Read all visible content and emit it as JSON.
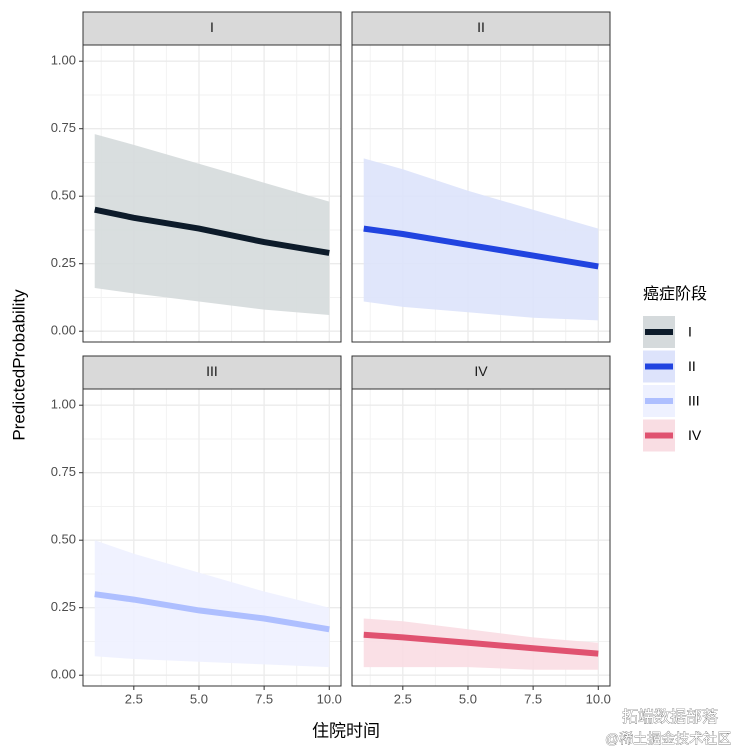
{
  "chart_data": {
    "type": "ribbon-line",
    "x_label": "住院时间",
    "y_label": "PredictedProbability",
    "legend_title": "癌症阶段",
    "x": [
      1,
      2.5,
      5,
      7.5,
      10
    ],
    "xlim": [
      0.55,
      10.45
    ],
    "xticks": [
      2.5,
      {
        "value": 5,
        "label": "5.0"
      },
      7.5,
      {
        "value": 10,
        "label": "10.0"
      }
    ],
    "x_minor_ticks": [
      1.25,
      3.75,
      6.25,
      8.75
    ],
    "ylim": [
      -0.04,
      1.06
    ],
    "yticks": [
      {
        "value": 0,
        "label": "0.00"
      },
      {
        "value": 0.25,
        "label": "0.25"
      },
      {
        "value": 0.5,
        "label": "0.50"
      },
      {
        "value": 0.75,
        "label": "0.75"
      },
      {
        "value": 1,
        "label": "1.00"
      }
    ],
    "y_minor_ticks": [
      0.125,
      0.375,
      0.625,
      0.875
    ],
    "grid": true,
    "series": [
      {
        "name": "I",
        "color": "#0d1b2a",
        "ribbon_color": "#d5dadc",
        "values": [
          0.45,
          0.42,
          0.38,
          0.33,
          0.29
        ],
        "lower": [
          0.16,
          0.14,
          0.11,
          0.08,
          0.06
        ],
        "upper": [
          0.73,
          0.69,
          0.62,
          0.55,
          0.48
        ]
      },
      {
        "name": "II",
        "color": "#2144e0",
        "ribbon_color": "#dde3fb",
        "values": [
          0.38,
          0.36,
          0.32,
          0.28,
          0.24
        ],
        "lower": [
          0.11,
          0.09,
          0.07,
          0.05,
          0.04
        ],
        "upper": [
          0.64,
          0.6,
          0.52,
          0.45,
          0.38
        ]
      },
      {
        "name": "III",
        "color": "#aebfff",
        "ribbon_color": "#eef1ff",
        "values": [
          0.3,
          0.28,
          0.24,
          0.21,
          0.17
        ],
        "lower": [
          0.07,
          0.06,
          0.05,
          0.04,
          0.03
        ],
        "upper": [
          0.5,
          0.45,
          0.38,
          0.31,
          0.25
        ]
      },
      {
        "name": "IV",
        "color": "#e05270",
        "ribbon_color": "#f9dde3",
        "values": [
          0.15,
          0.14,
          0.12,
          0.1,
          0.08
        ],
        "lower": [
          0.03,
          0.03,
          0.03,
          0.02,
          0.02
        ],
        "upper": [
          0.21,
          0.2,
          0.17,
          0.14,
          0.12
        ]
      }
    ],
    "watermark": [
      "拓端数据部落",
      "@稀土掘金技术社区"
    ]
  }
}
